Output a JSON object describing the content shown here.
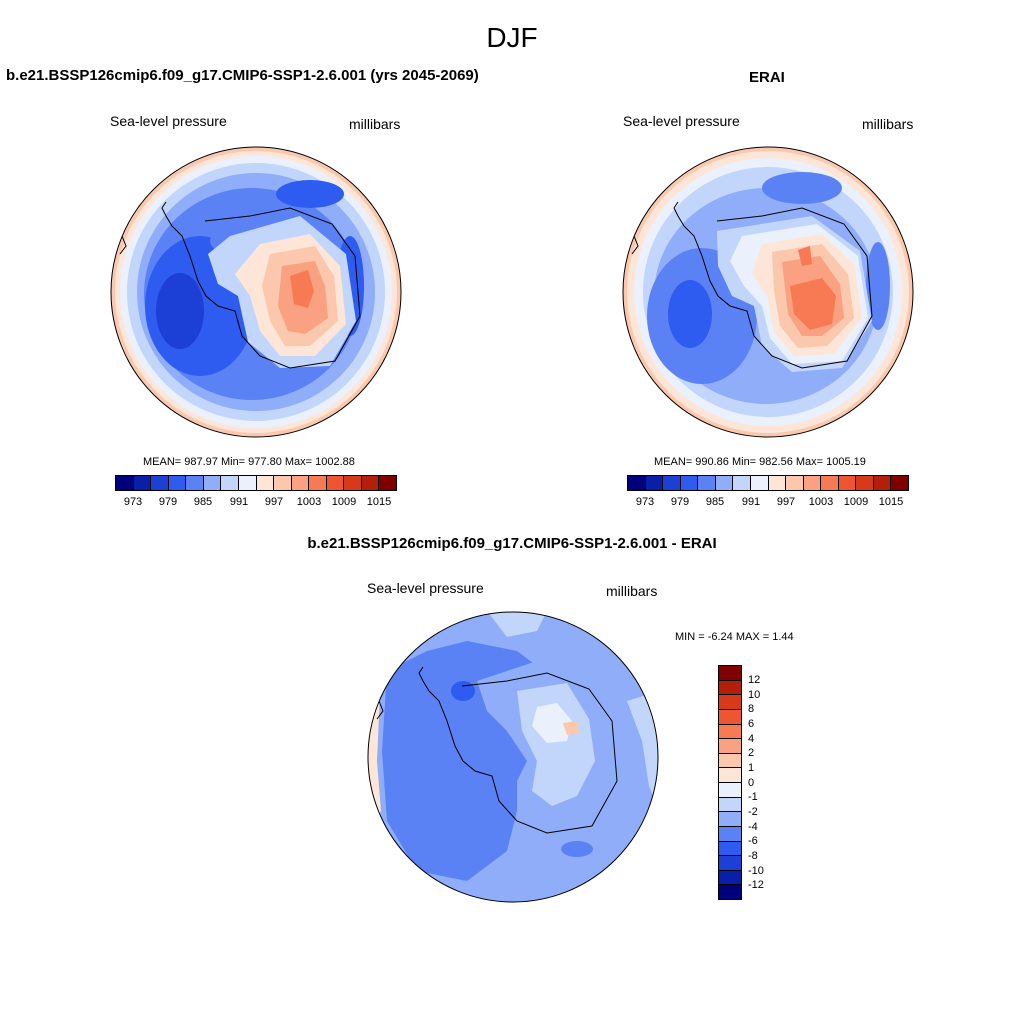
{
  "title": "DJF",
  "panels": {
    "model": {
      "title": "b.e21.BSSP126cmip6.f09_g17.CMIP6-SSP1-2.6.001 (yrs 2045-2069)",
      "variable": "Sea-level pressure",
      "units": "millibars",
      "stats": "MEAN= 987.97  Min= 977.80  Max= 1002.88",
      "colorbar_ticks": [
        "973",
        "979",
        "985",
        "991",
        "997",
        "1003",
        "1009",
        "1015"
      ]
    },
    "obs": {
      "title": "ERAI",
      "variable": "Sea-level pressure",
      "units": "millibars",
      "stats": "MEAN= 990.86  Min= 982.56  Max= 1005.19",
      "colorbar_ticks": [
        "973",
        "979",
        "985",
        "991",
        "997",
        "1003",
        "1009",
        "1015"
      ]
    },
    "diff": {
      "title": "b.e21.BSSP126cmip6.f09_g17.CMIP6-SSP1-2.6.001 - ERAI",
      "variable": "Sea-level pressure",
      "units": "millibars",
      "minmax": "MIN =  -6.24 MAX =   1.44",
      "colorbar_ticks": [
        "12",
        "10",
        "8",
        "6",
        "4",
        "2",
        "1",
        "0",
        "-1",
        "-2",
        "-4",
        "-6",
        "-8",
        "-10",
        "-12"
      ]
    }
  },
  "colors": {
    "abs_scale": [
      "#00007f",
      "#0a1fa8",
      "#1c3fd6",
      "#2f5cf0",
      "#5a82f5",
      "#8fadf8",
      "#c2d5fb",
      "#eaf1fd",
      "#fde6d8",
      "#fbc7ad",
      "#f9a180",
      "#f77a55",
      "#ef5530",
      "#d63a18",
      "#b41f0c",
      "#800000"
    ],
    "diff_scale": [
      "#800000",
      "#b41f0c",
      "#d63a18",
      "#ef5530",
      "#f77a55",
      "#f9a180",
      "#fbc7ad",
      "#fde6d8",
      "#eaf1fd",
      "#c2d5fb",
      "#8fadf8",
      "#5a82f5",
      "#2f5cf0",
      "#1c3fd6",
      "#0a1fa8",
      "#00007f"
    ]
  }
}
